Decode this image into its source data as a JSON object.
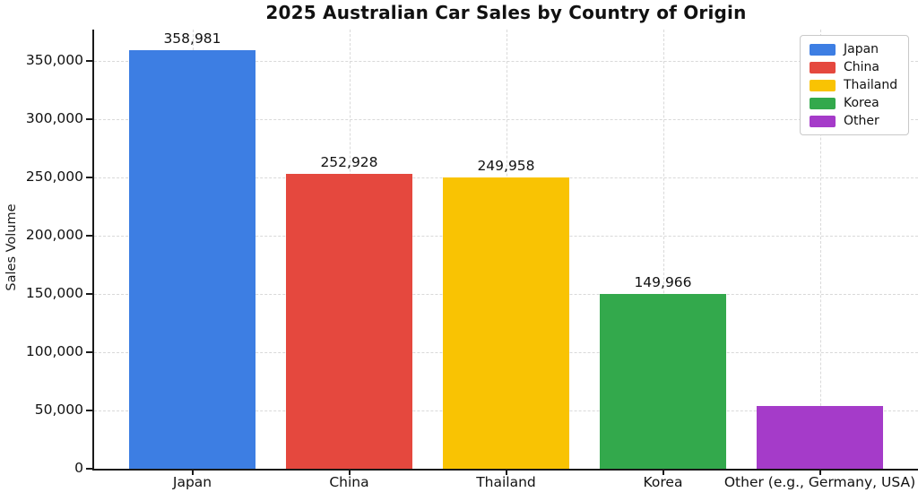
{
  "title": "2025 Australian Car Sales by Country of Origin",
  "chart_data": {
    "type": "bar",
    "title": "2025 Australian Car Sales by Country of Origin",
    "xlabel": "",
    "ylabel": "Sales Volume",
    "categories": [
      "Japan",
      "China",
      "Thailand",
      "Korea",
      "Other (e.g., Germany, USA)"
    ],
    "values": [
      358981,
      252928,
      249958,
      149966,
      54000
    ],
    "bar_value_labels": [
      "358,981",
      "252,928",
      "249,958",
      "149,966",
      ""
    ],
    "bar_colors": [
      "#3d7ee3",
      "#e5483e",
      "#f9c303",
      "#33a94c",
      "#a53bc9"
    ],
    "ylim": [
      0,
      377000
    ],
    "yticks": [
      0,
      50000,
      100000,
      150000,
      200000,
      250000,
      300000,
      350000
    ],
    "ytick_labels": [
      "0",
      "50,000",
      "100,000",
      "150,000",
      "200,000",
      "250,000",
      "300,000",
      "350,000"
    ],
    "grid": true,
    "grid_style": "dashed",
    "legend": {
      "position": "top-right",
      "entries": [
        {
          "label": "Japan",
          "color": "#3d7ee3"
        },
        {
          "label": "China",
          "color": "#e5483e"
        },
        {
          "label": "Thailand",
          "color": "#f9c303"
        },
        {
          "label": "Korea",
          "color": "#33a94c"
        },
        {
          "label": "Other",
          "color": "#a53bc9"
        }
      ]
    }
  }
}
